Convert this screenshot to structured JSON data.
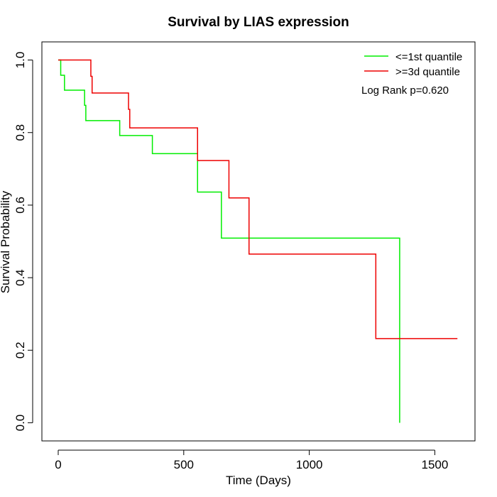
{
  "chart_data": {
    "type": "line",
    "title": "Survival by LIAS expression",
    "xlabel": "Time (Days)",
    "ylabel": "Survival Probability",
    "xlim": [
      -65,
      1660
    ],
    "ylim": [
      -0.05,
      1.05
    ],
    "x_ticks": [
      0,
      500,
      1000,
      1500
    ],
    "y_ticks": [
      0.0,
      0.2,
      0.4,
      0.6,
      0.8,
      1.0
    ],
    "x_tick_labels": [
      "0",
      "500",
      "1000",
      "1500"
    ],
    "y_tick_labels": [
      "0.0",
      "0.2",
      "0.4",
      "0.6",
      "0.8",
      "1.0"
    ],
    "step": true,
    "grid": false,
    "legend_position": "top-right",
    "annotation": "Log Rank p=0.620",
    "series": [
      {
        "name": "<=1st quantile",
        "color": "#00ee00",
        "x": [
          0,
          10,
          25,
          105,
          110,
          245,
          375,
          555,
          650,
          1360,
          1360
        ],
        "y": [
          1.0,
          0.958,
          0.917,
          0.875,
          0.833,
          0.792,
          0.742,
          0.636,
          0.509,
          0.509,
          0.0
        ]
      },
      {
        "name": ">=3d quantile",
        "color": "#ee0000",
        "x": [
          0,
          130,
          135,
          280,
          285,
          555,
          680,
          760,
          1265,
          1590
        ],
        "y": [
          1.0,
          0.955,
          0.909,
          0.864,
          0.813,
          0.723,
          0.62,
          0.465,
          0.232,
          0.232
        ]
      }
    ]
  }
}
